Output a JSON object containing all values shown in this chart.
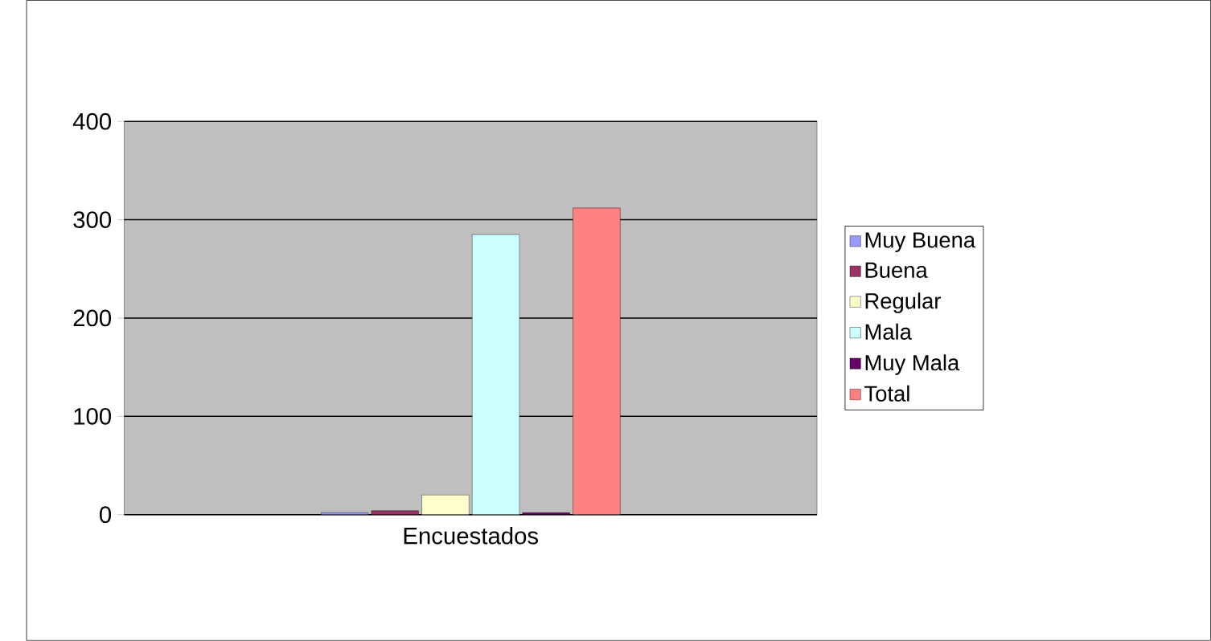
{
  "chart_data": {
    "type": "bar",
    "categories": [
      "Encuestados"
    ],
    "series": [
      {
        "name": "Muy Buena",
        "color": "#9999ff",
        "values": [
          2
        ]
      },
      {
        "name": "Buena",
        "color": "#993366",
        "values": [
          4
        ]
      },
      {
        "name": "Regular",
        "color": "#ffffcc",
        "values": [
          20
        ]
      },
      {
        "name": "Mala",
        "color": "#ccffff",
        "values": [
          285
        ]
      },
      {
        "name": "Muy Mala",
        "color": "#660066",
        "values": [
          2
        ]
      },
      {
        "name": "Total",
        "color": "#ff8080",
        "values": [
          312
        ]
      }
    ],
    "ylim": [
      0,
      400
    ],
    "yticks": [
      0,
      100,
      200,
      300,
      400
    ],
    "grid": "y",
    "legend": "right"
  }
}
